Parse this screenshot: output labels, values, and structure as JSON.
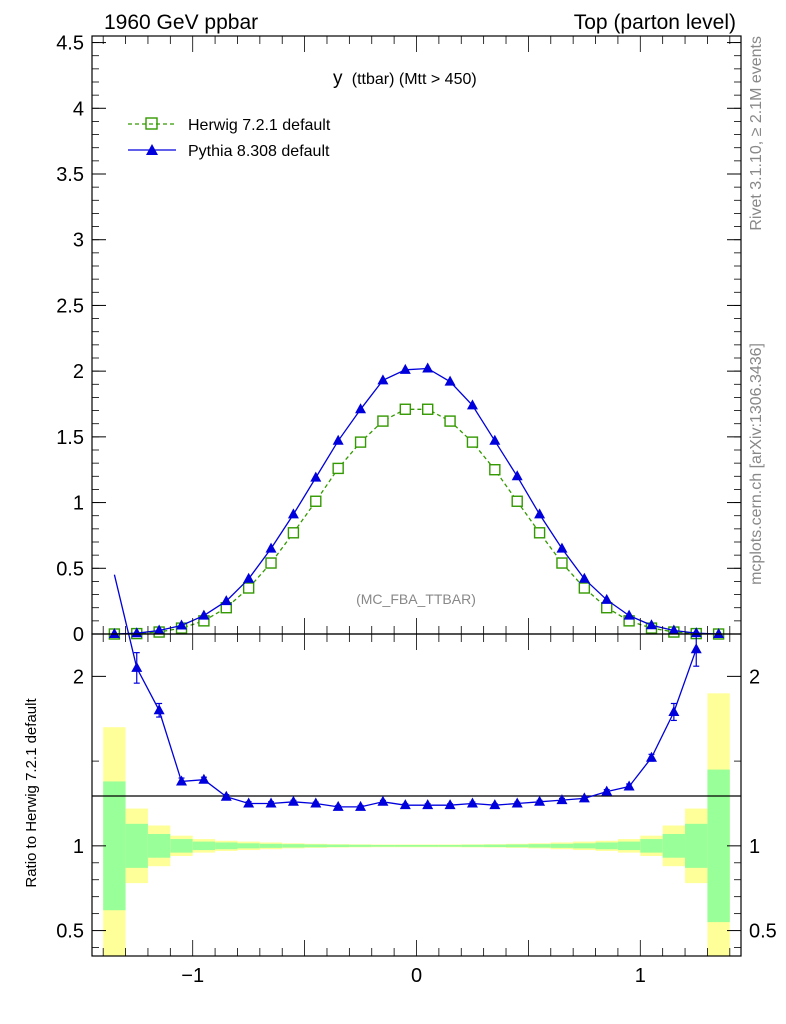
{
  "header": {
    "left": "1960 GeV ppbar",
    "right": "Top (parton level)"
  },
  "side_text": {
    "rivet": "Rivet 3.1.10, ≥ 2.1M events",
    "mcplots": "mcplots.cern.ch [arXiv:1306.3436]"
  },
  "chart_data": [
    {
      "type": "line",
      "title": "y (ttbar) (Mtt > 450)",
      "title_main": "y",
      "title_sub": "(ttbar) (Mtt > 450)",
      "analysis_tag": "(MC_FBA_TTBAR)",
      "xlim": [
        -1.45,
        1.45
      ],
      "ylim": [
        0,
        4.55
      ],
      "yticks": [
        0,
        0.5,
        1,
        1.5,
        2,
        2.5,
        3,
        3.5,
        4,
        4.5
      ],
      "ytick_labels": [
        "0",
        "0.5",
        "1",
        "1.5",
        "2",
        "2.5",
        "3",
        "3.5",
        "4",
        "4.5"
      ],
      "grid": false,
      "legend_position": "top-left",
      "x": [
        -1.35,
        -1.25,
        -1.15,
        -1.05,
        -0.95,
        -0.85,
        -0.75,
        -0.65,
        -0.55,
        -0.45,
        -0.35,
        -0.25,
        -0.15,
        -0.05,
        0.05,
        0.15,
        0.25,
        0.35,
        0.45,
        0.55,
        0.65,
        0.75,
        0.85,
        0.95,
        1.05,
        1.15,
        1.25,
        1.35
      ],
      "series": [
        {
          "name": "Herwig 7.2.1 default",
          "color": "#339900",
          "marker": "open-square",
          "line": "dashed",
          "values": [
            0.0,
            0.003,
            0.015,
            0.045,
            0.1,
            0.2,
            0.35,
            0.54,
            0.77,
            1.01,
            1.26,
            1.46,
            1.62,
            1.71,
            1.71,
            1.62,
            1.46,
            1.25,
            1.01,
            0.77,
            0.54,
            0.35,
            0.2,
            0.1,
            0.045,
            0.015,
            0.003,
            0.0
          ]
        },
        {
          "name": "Pythia 8.308 default",
          "color": "#0000dd",
          "marker": "filled-triangle",
          "line": "solid",
          "values": [
            0.0,
            0.006,
            0.027,
            0.065,
            0.14,
            0.25,
            0.42,
            0.65,
            0.91,
            1.19,
            1.47,
            1.71,
            1.93,
            2.01,
            2.02,
            1.92,
            1.74,
            1.47,
            1.2,
            0.91,
            0.65,
            0.42,
            0.26,
            0.14,
            0.067,
            0.027,
            0.007,
            0.0
          ]
        }
      ]
    },
    {
      "type": "line",
      "ylabel": "Ratio to Herwig 7.2.1 default",
      "xlim": [
        -1.45,
        1.45
      ],
      "ylim": [
        0.35,
        2.25
      ],
      "xticks": [
        -1,
        0,
        1
      ],
      "xtick_labels": [
        "−1",
        "0",
        "1"
      ],
      "yticks": [
        0.5,
        1,
        2
      ],
      "ytick_labels": [
        "0.5",
        "1",
        "2"
      ],
      "reference_line": 1,
      "bands": {
        "edges": [
          -1.4,
          -1.3,
          -1.2,
          -1.1,
          -1.0,
          -0.9,
          -0.8,
          -0.7,
          -0.6,
          -0.5,
          -0.4,
          -0.3,
          -0.2,
          -0.1,
          0.0,
          0.1,
          0.2,
          0.3,
          0.4,
          0.5,
          0.6,
          0.7,
          0.8,
          0.9,
          1.0,
          1.1,
          1.2,
          1.3,
          1.4
        ],
        "green_halfwidth": [
          0.38,
          0.13,
          0.07,
          0.04,
          0.025,
          0.02,
          0.015,
          0.012,
          0.01,
          0.008,
          0.007,
          0.006,
          0.005,
          0.005,
          0.005,
          0.005,
          0.006,
          0.007,
          0.008,
          0.01,
          0.012,
          0.015,
          0.02,
          0.025,
          0.04,
          0.07,
          0.13,
          0.45
        ],
        "yellow_halfwidth": [
          0.7,
          0.22,
          0.12,
          0.06,
          0.04,
          0.03,
          0.025,
          0.02,
          0.015,
          0.012,
          0.01,
          0.009,
          0.008,
          0.008,
          0.008,
          0.008,
          0.009,
          0.01,
          0.012,
          0.015,
          0.02,
          0.025,
          0.03,
          0.04,
          0.06,
          0.12,
          0.22,
          0.9
        ],
        "green_color": "#99ff99",
        "yellow_color": "#ffff99"
      },
      "series": [
        {
          "name": "Pythia 8.308 default",
          "color": "#0000dd",
          "x": [
            -1.35,
            -1.25,
            -1.15,
            -1.05,
            -0.95,
            -0.85,
            -0.75,
            -0.65,
            -0.55,
            -0.45,
            -0.35,
            -0.25,
            -0.15,
            -0.05,
            0.05,
            0.15,
            0.25,
            0.35,
            0.45,
            0.55,
            0.65,
            0.75,
            0.85,
            0.95,
            1.05,
            1.15,
            1.25
          ],
          "values": [
            2.6,
            2.05,
            1.8,
            1.38,
            1.39,
            1.29,
            1.25,
            1.25,
            1.26,
            1.25,
            1.23,
            1.23,
            1.26,
            1.24,
            1.24,
            1.24,
            1.25,
            1.24,
            1.25,
            1.26,
            1.27,
            1.28,
            1.32,
            1.35,
            1.52,
            1.79,
            2.16
          ],
          "errors": [
            0.0,
            0.09,
            0.04,
            0.02,
            0.015,
            0.012,
            0.01,
            0.01,
            0.008,
            0.008,
            0.008,
            0.008,
            0.008,
            0.008,
            0.008,
            0.008,
            0.008,
            0.008,
            0.008,
            0.008,
            0.01,
            0.01,
            0.012,
            0.015,
            0.02,
            0.05,
            0.1
          ]
        }
      ]
    }
  ]
}
